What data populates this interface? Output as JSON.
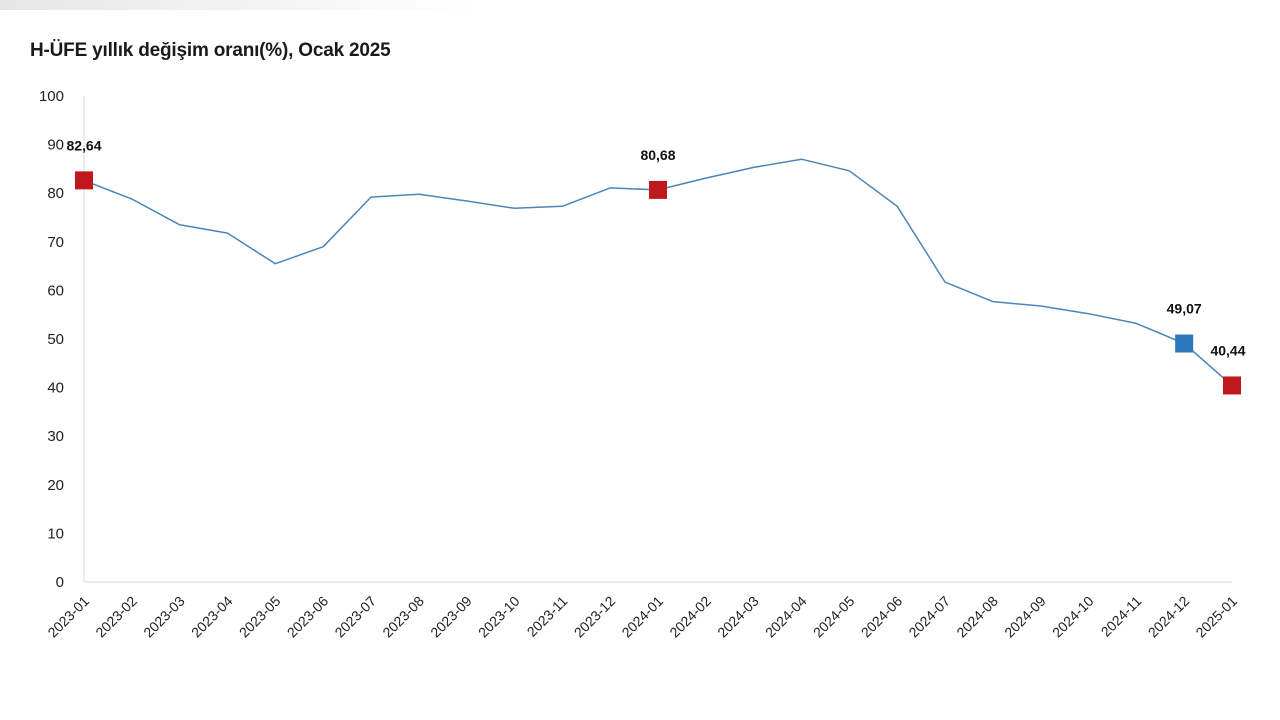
{
  "chart_data": {
    "type": "line",
    "title": "H-ÜFE yıllık değişim oranı(%), Ocak 2025",
    "xlabel": "",
    "ylabel": "",
    "ylim": [
      0,
      100
    ],
    "yticks": [
      "0",
      "10",
      "20",
      "30",
      "40",
      "50",
      "60",
      "70",
      "80",
      "90",
      "100"
    ],
    "grid": false,
    "categories": [
      "2023-01",
      "2023-02",
      "2023-03",
      "2023-04",
      "2023-05",
      "2023-06",
      "2023-07",
      "2023-08",
      "2023-09",
      "2023-10",
      "2023-11",
      "2023-12",
      "2024-01",
      "2024-02",
      "2024-03",
      "2024-04",
      "2024-05",
      "2024-06",
      "2024-07",
      "2024-08",
      "2024-09",
      "2024-10",
      "2024-11",
      "2024-12",
      "2025-01"
    ],
    "series": [
      {
        "name": "H-ÜFE yıllık değişim oranı",
        "color": "#4a86b8",
        "values": [
          82.64,
          78.8,
          73.5,
          71.8,
          65.5,
          69.0,
          79.2,
          79.8,
          78.4,
          76.9,
          77.3,
          81.1,
          80.68,
          83.1,
          85.3,
          87.0,
          84.6,
          77.3,
          61.7,
          57.7,
          56.8,
          55.2,
          53.2,
          49.07,
          40.44
        ]
      }
    ],
    "markers": [
      {
        "index": 0,
        "label": "82,64",
        "color": "#c0181f"
      },
      {
        "index": 12,
        "label": "80,68",
        "color": "#c0181f"
      },
      {
        "index": 23,
        "label": "49,07",
        "color": "#2e78bd"
      },
      {
        "index": 24,
        "label": "40,44",
        "color": "#c0181f"
      }
    ]
  }
}
